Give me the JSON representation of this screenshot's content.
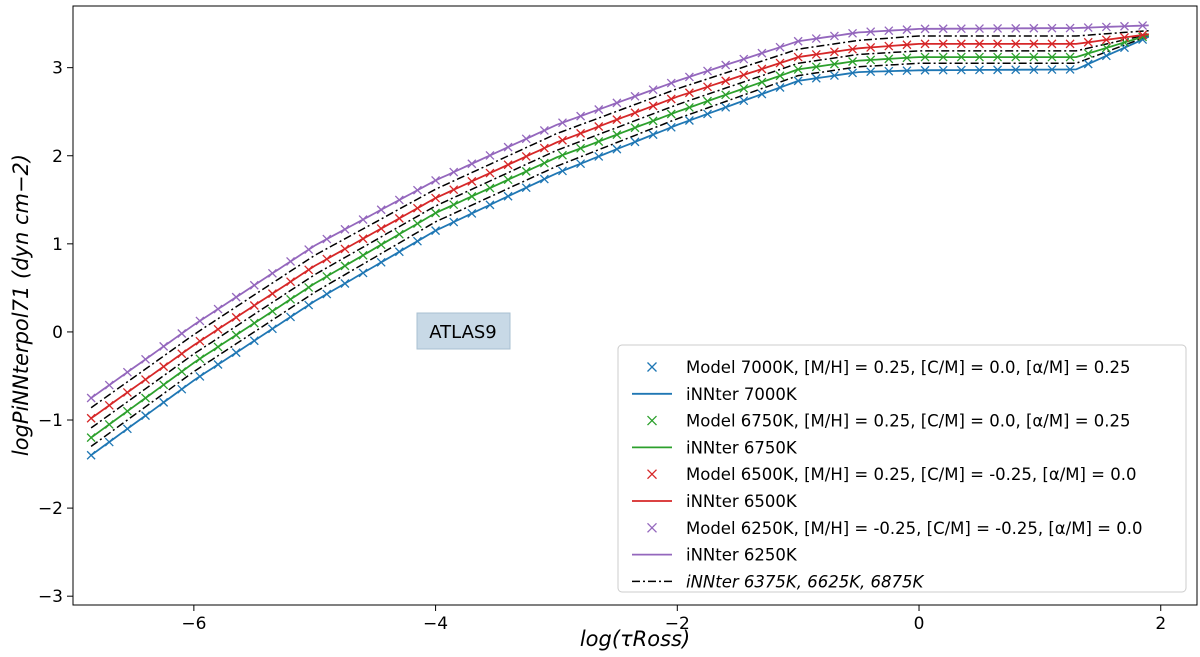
{
  "chart_data": {
    "type": "line",
    "xlabel": "log(τRoss)",
    "ylabel": "logPiNNterpol71 (dyn cm−2)",
    "xlim": [
      -7.0,
      2.3
    ],
    "ylim": [
      -3.1,
      3.7
    ],
    "xticks": [
      -6,
      -4,
      -2,
      0,
      2
    ],
    "yticks": [
      -3,
      -2,
      -1,
      0,
      1,
      2,
      3
    ],
    "xtick_labels": [
      "−6",
      "−4",
      "−2",
      "0",
      "2"
    ],
    "ytick_labels": [
      "−3",
      "−2",
      "−1",
      "0",
      "1",
      "2",
      "3"
    ],
    "annotation": "ATLAS9",
    "legend_position": "lower right",
    "series": [
      {
        "name": "Model 7000K, [M/H] = 0.25, [C/M] = 0.0,  [α/M] = 0.25",
        "label": "iNNter 7000K",
        "color": "#1f77b4",
        "start": -1.4,
        "end_before_rise": 2.98,
        "final": 3.35,
        "x": [
          -6.85,
          -6,
          -5,
          -4,
          -3,
          -2,
          -1,
          -0.5,
          0,
          1.3,
          1.9
        ],
        "y": [
          -1.4,
          -0.55,
          0.35,
          1.15,
          1.8,
          2.35,
          2.85,
          2.95,
          2.97,
          2.98,
          3.35
        ]
      },
      {
        "name": "Model 6750K, [M/H] = 0.25, [C/M] = 0.0,  [α/M] = 0.25",
        "label": "iNNter 6750K",
        "color": "#2ca02c",
        "start": -1.2,
        "end_before_rise": 3.12,
        "final": 3.37,
        "x": [
          -6.85,
          -6,
          -5,
          -4,
          -3,
          -2,
          -1,
          -0.5,
          0,
          1.3,
          1.9
        ],
        "y": [
          -1.2,
          -0.35,
          0.55,
          1.35,
          1.98,
          2.5,
          2.98,
          3.08,
          3.12,
          3.12,
          3.37
        ]
      },
      {
        "name": "Model 6500K, [M/H] = 0.25, [C/M] = -0.25,  [α/M] = 0.0",
        "label": "iNNter 6500K",
        "color": "#d62728",
        "start": -0.98,
        "end_before_rise": 3.27,
        "final": 3.38,
        "x": [
          -6.85,
          -6,
          -5,
          -4,
          -3,
          -2,
          -1,
          -0.5,
          0,
          1.3,
          1.9
        ],
        "y": [
          -0.98,
          -0.15,
          0.75,
          1.52,
          2.15,
          2.67,
          3.12,
          3.22,
          3.27,
          3.27,
          3.38
        ]
      },
      {
        "name": "Model 6250K, [M/H] = -0.25, [C/M] = -0.25,  [α/M] = 0.0",
        "label": "iNNter 6250K",
        "color": "#9467bd",
        "start": -0.75,
        "end_before_rise": 3.45,
        "final": 3.48,
        "x": [
          -6.85,
          -6,
          -5,
          -4,
          -3,
          -2,
          -1,
          -0.5,
          0,
          1.3,
          1.9
        ],
        "y": [
          -0.75,
          0.08,
          0.98,
          1.72,
          2.35,
          2.85,
          3.3,
          3.4,
          3.44,
          3.45,
          3.48
        ]
      }
    ],
    "interp_label": "iNNter 6375K,  6625K,  6875K",
    "interp_series": [
      {
        "name": "iNNter 6375K",
        "x": [
          -6.85,
          -6,
          -5,
          -4,
          -3,
          -2,
          -1,
          -0.5,
          0,
          1.3,
          1.9
        ],
        "y": [
          -0.86,
          -0.03,
          0.87,
          1.62,
          2.25,
          2.76,
          3.21,
          3.31,
          3.36,
          3.36,
          3.42
        ]
      },
      {
        "name": "iNNter 6625K",
        "x": [
          -6.85,
          -6,
          -5,
          -4,
          -3,
          -2,
          -1,
          -0.5,
          0,
          1.3,
          1.9
        ],
        "y": [
          -1.09,
          -0.25,
          0.65,
          1.43,
          2.06,
          2.58,
          3.05,
          3.15,
          3.19,
          3.19,
          3.38
        ]
      },
      {
        "name": "iNNter 6875K",
        "x": [
          -6.85,
          -6,
          -5,
          -4,
          -3,
          -2,
          -1,
          -0.5,
          0,
          1.3,
          1.9
        ],
        "y": [
          -1.3,
          -0.45,
          0.45,
          1.25,
          1.88,
          2.42,
          2.91,
          3.01,
          3.05,
          3.05,
          3.36
        ]
      }
    ]
  },
  "colors": {
    "blue": "#1f77b4",
    "green": "#2ca02c",
    "red": "#d62728",
    "purple": "#9467bd",
    "interp": "#000000",
    "annotation_bg": "#c8d9e6"
  }
}
